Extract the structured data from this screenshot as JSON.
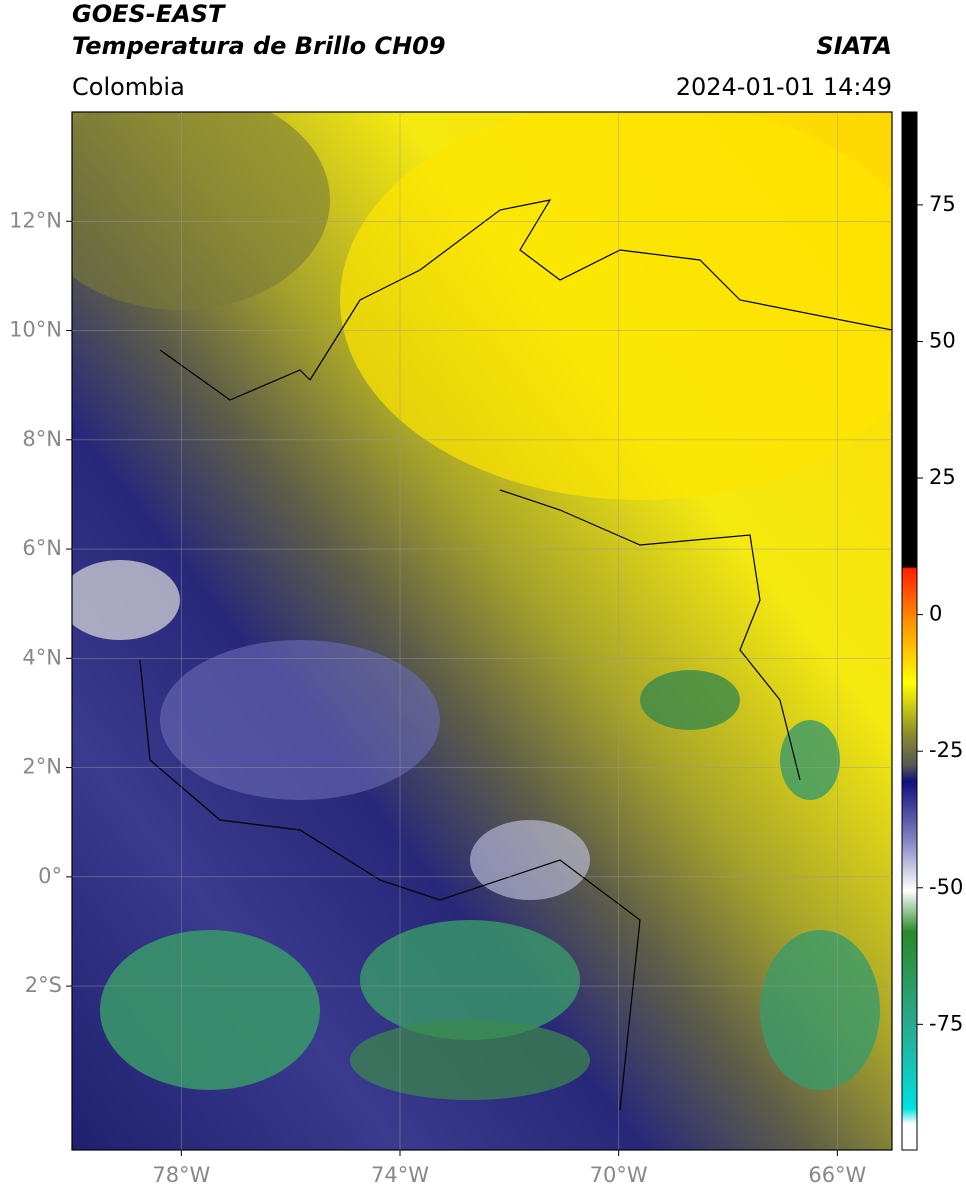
{
  "header": {
    "title": "GOES-EAST",
    "subtitle": "Temperatura de Brillo CH09",
    "source": "SIATA",
    "region": "Colombia",
    "timestamp": "2024-01-01 14:49"
  },
  "map": {
    "lonlim": [
      -80,
      -65
    ],
    "latlim": [
      -5,
      14
    ],
    "xticks": [
      {
        "value": -78,
        "label": "78°W"
      },
      {
        "value": -74,
        "label": "74°W"
      },
      {
        "value": -70,
        "label": "70°W"
      },
      {
        "value": -66,
        "label": "66°W"
      }
    ],
    "yticks": [
      {
        "value": 12,
        "label": "12°N"
      },
      {
        "value": 10,
        "label": "10°N"
      },
      {
        "value": 8,
        "label": "8°N"
      },
      {
        "value": 6,
        "label": "6°N"
      },
      {
        "value": 4,
        "label": "4°N"
      },
      {
        "value": 2,
        "label": "2°N"
      },
      {
        "value": 0,
        "label": "0°"
      },
      {
        "value": -2,
        "label": "2°S"
      }
    ],
    "grid": true
  },
  "colorbar": {
    "lim": [
      -98,
      92
    ],
    "ticks": [
      75,
      50,
      25,
      0,
      -25,
      -50,
      -75
    ]
  }
}
